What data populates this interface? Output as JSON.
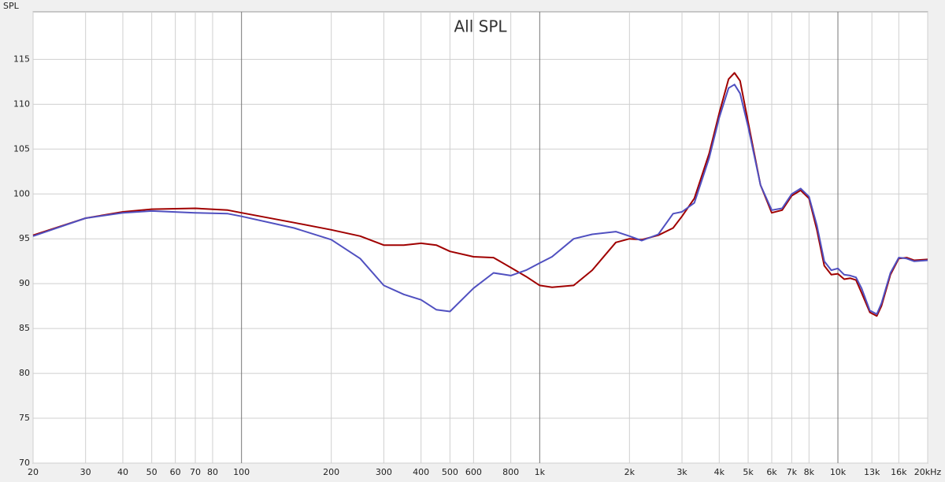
{
  "chart_data": {
    "type": "line",
    "title": "All SPL",
    "y_label": "SPL",
    "x_scale": "log",
    "grid": true,
    "x": [
      20,
      30,
      40,
      50,
      70,
      90,
      100,
      150,
      200,
      250,
      300,
      350,
      400,
      450,
      500,
      600,
      700,
      800,
      900,
      1000,
      1100,
      1300,
      1500,
      1800,
      2000,
      2200,
      2500,
      2800,
      3000,
      3300,
      3700,
      4000,
      4300,
      4500,
      4700,
      5000,
      5500,
      6000,
      6500,
      7000,
      7500,
      8000,
      8500,
      9000,
      9500,
      10000,
      10500,
      11000,
      11500,
      12000,
      12800,
      13500,
      14000,
      15000,
      16000,
      17000,
      18000,
      20000
    ],
    "series": [
      {
        "color": "#a00000",
        "values": [
          95.4,
          97.3,
          98.0,
          98.3,
          98.4,
          98.2,
          97.9,
          96.8,
          96.0,
          95.3,
          94.3,
          94.3,
          94.5,
          94.3,
          93.6,
          93.0,
          92.9,
          91.8,
          90.8,
          89.8,
          89.6,
          89.8,
          91.5,
          94.6,
          95.0,
          94.9,
          95.4,
          96.2,
          97.5,
          99.5,
          104.5,
          109,
          112.8,
          113.5,
          112.6,
          108,
          101,
          97.9,
          98.2,
          99.8,
          100.4,
          99.5,
          96,
          92,
          91,
          91.1,
          90.5,
          90.6,
          90.4,
          89,
          86.8,
          86.4,
          87.5,
          91,
          92.8,
          92.9,
          92.6,
          92.7
        ]
      },
      {
        "color": "#5050c0",
        "values": [
          95.3,
          97.3,
          97.9,
          98.1,
          97.9,
          97.8,
          97.5,
          96.2,
          94.9,
          92.8,
          89.8,
          88.8,
          88.2,
          87.1,
          86.9,
          89.5,
          91.2,
          90.9,
          91.5,
          92.3,
          93,
          95,
          95.5,
          95.8,
          95.3,
          94.8,
          95.5,
          97.8,
          98.0,
          99,
          104,
          108.5,
          111.8,
          112.2,
          111.2,
          107.5,
          101,
          98.2,
          98.4,
          100,
          100.6,
          99.7,
          96.5,
          92.5,
          91.5,
          91.7,
          91,
          90.9,
          90.7,
          89.5,
          87,
          86.6,
          87.8,
          91.2,
          92.9,
          92.8,
          92.5,
          92.6
        ]
      }
    ],
    "xlim": [
      20,
      20000
    ],
    "ylim": [
      70,
      120.3
    ],
    "yticks": [
      70,
      75,
      80,
      85,
      90,
      95,
      100,
      105,
      110,
      115
    ],
    "xticks": [
      20,
      30,
      40,
      50,
      60,
      70,
      80,
      100,
      200,
      300,
      400,
      500,
      600,
      800,
      {
        "value": 1000,
        "label": "1k"
      },
      {
        "value": 2000,
        "label": "2k"
      },
      {
        "value": 3000,
        "label": "3k"
      },
      {
        "value": 4000,
        "label": "4k"
      },
      {
        "value": 5000,
        "label": "5k"
      },
      {
        "value": 6000,
        "label": "6k"
      },
      {
        "value": 7000,
        "label": "7k"
      },
      {
        "value": 8000,
        "label": "8k"
      },
      {
        "value": 10000,
        "label": "10k"
      },
      {
        "value": 13000,
        "label": "13k"
      },
      {
        "value": 16000,
        "label": "16k"
      },
      {
        "value": 20000,
        "label": "20kHz"
      }
    ]
  }
}
